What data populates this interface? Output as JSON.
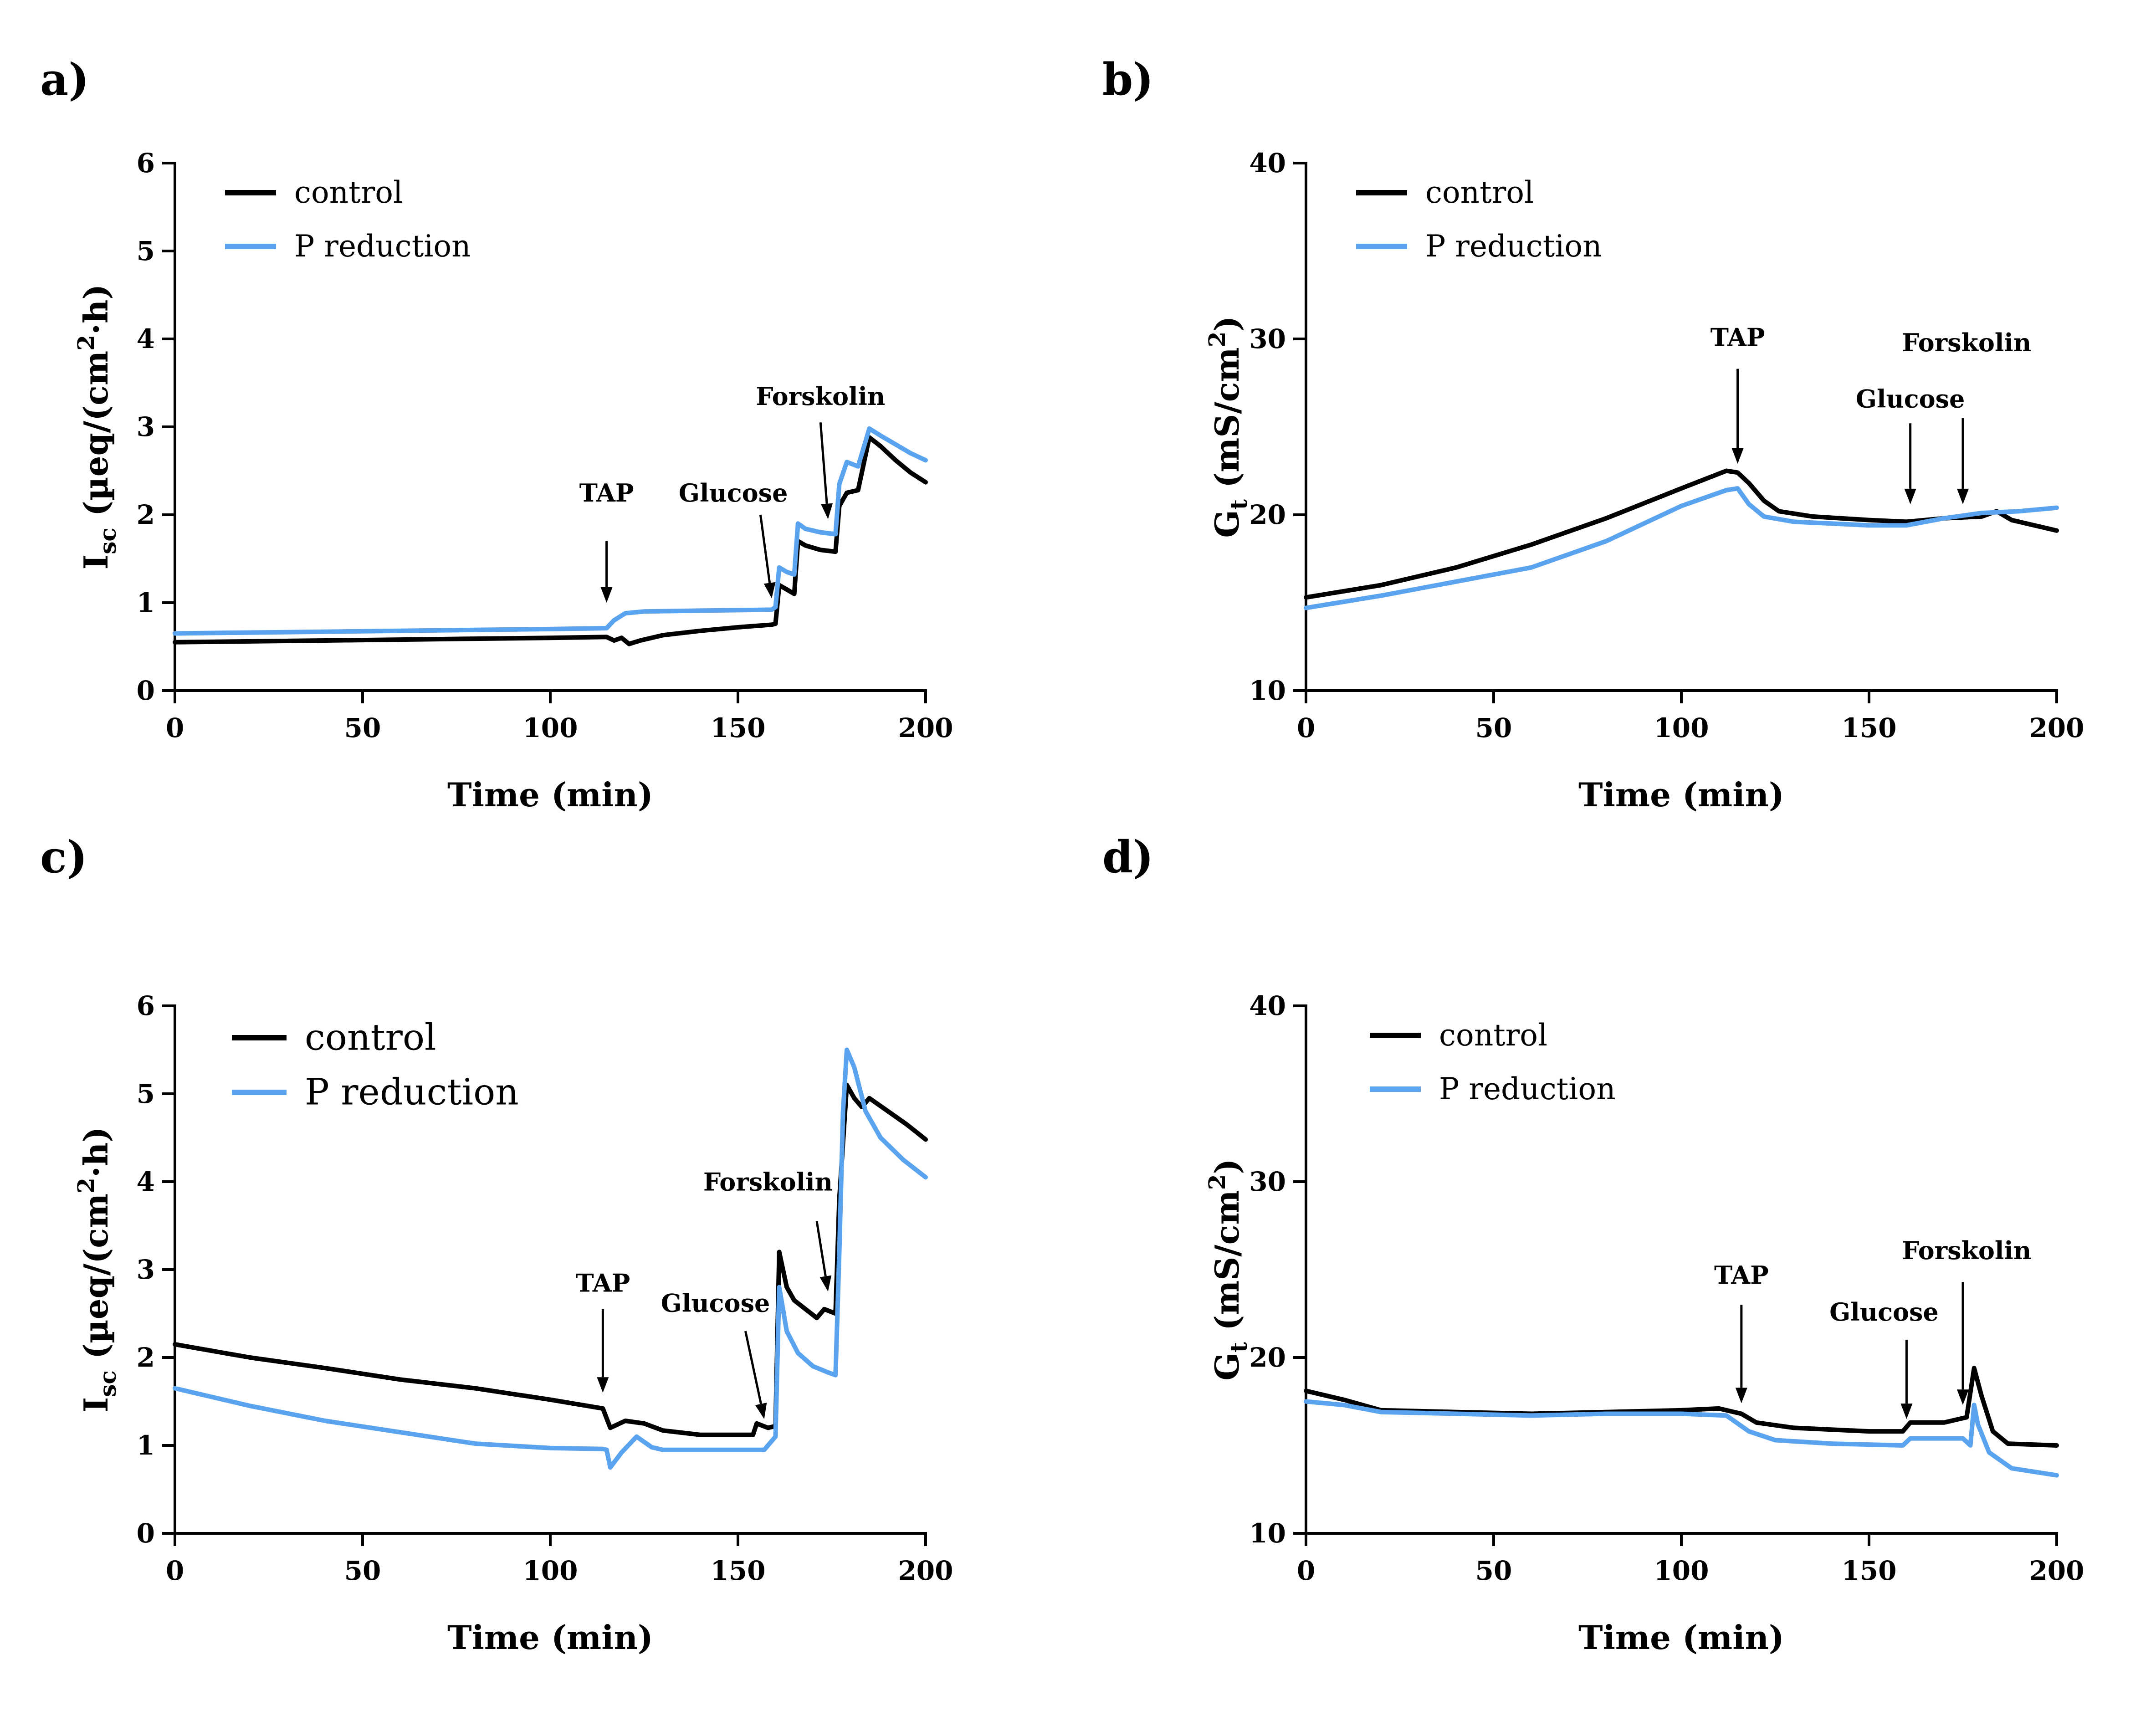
{
  "colors": {
    "control": "#000000",
    "p_reduction": "#5aa3ee"
  },
  "chart_data": [
    {
      "type": "line",
      "panel_label": "a)",
      "xlabel": "Time (min)",
      "ylabel_main": "I",
      "ylabel_sub": "sc",
      "ylabel_rest": " (µeq/(cm",
      "ylabel_sup": "2",
      "ylabel_end": "·h)",
      "xlim": [
        0,
        200
      ],
      "ylim": [
        0,
        6
      ],
      "xticks": [
        0,
        50,
        100,
        150,
        200
      ],
      "yticks": [
        0,
        1,
        2,
        3,
        4,
        5,
        6
      ],
      "legend": [
        "control",
        "P reduction"
      ],
      "series": [
        {
          "name": "control",
          "points": [
            [
              0,
              0.55
            ],
            [
              20,
              0.56
            ],
            [
              40,
              0.57
            ],
            [
              60,
              0.58
            ],
            [
              80,
              0.59
            ],
            [
              100,
              0.6
            ],
            [
              115,
              0.61
            ],
            [
              117,
              0.57
            ],
            [
              119,
              0.6
            ],
            [
              121,
              0.53
            ],
            [
              124,
              0.57
            ],
            [
              130,
              0.63
            ],
            [
              140,
              0.68
            ],
            [
              150,
              0.72
            ],
            [
              159,
              0.75
            ],
            [
              160,
              0.76
            ],
            [
              161,
              1.2
            ],
            [
              163,
              1.15
            ],
            [
              165,
              1.1
            ],
            [
              166,
              1.7
            ],
            [
              168,
              1.65
            ],
            [
              172,
              1.6
            ],
            [
              176,
              1.58
            ],
            [
              177,
              2.1
            ],
            [
              179,
              2.25
            ],
            [
              182,
              2.28
            ],
            [
              185,
              2.88
            ],
            [
              188,
              2.78
            ],
            [
              192,
              2.62
            ],
            [
              196,
              2.48
            ],
            [
              200,
              2.37
            ]
          ]
        },
        {
          "name": "P reduction",
          "points": [
            [
              0,
              0.65
            ],
            [
              20,
              0.66
            ],
            [
              40,
              0.67
            ],
            [
              60,
              0.68
            ],
            [
              80,
              0.69
            ],
            [
              100,
              0.7
            ],
            [
              115,
              0.71
            ],
            [
              117,
              0.8
            ],
            [
              120,
              0.88
            ],
            [
              125,
              0.9
            ],
            [
              140,
              0.91
            ],
            [
              159,
              0.92
            ],
            [
              160,
              0.95
            ],
            [
              161,
              1.4
            ],
            [
              163,
              1.35
            ],
            [
              165,
              1.32
            ],
            [
              166,
              1.9
            ],
            [
              168,
              1.84
            ],
            [
              172,
              1.8
            ],
            [
              176,
              1.78
            ],
            [
              177,
              2.35
            ],
            [
              179,
              2.6
            ],
            [
              182,
              2.55
            ],
            [
              185,
              2.98
            ],
            [
              188,
              2.9
            ],
            [
              192,
              2.8
            ],
            [
              196,
              2.7
            ],
            [
              200,
              2.62
            ]
          ]
        }
      ],
      "annotations": [
        {
          "label": "TAP",
          "x": 115,
          "y_text": 2.15,
          "y_start": 1.7,
          "y_end": 1.0,
          "align": "center"
        },
        {
          "label": "Glucose",
          "x": 159,
          "y_text": 2.15,
          "y_start": 2.0,
          "y_end": 1.05,
          "x_start": 156,
          "align": "right"
        },
        {
          "label": "Forskolin",
          "x": 174,
          "y_text": 3.25,
          "y_start": 3.05,
          "y_end": 1.95,
          "x_start": 172,
          "align": "center"
        }
      ]
    },
    {
      "type": "line",
      "panel_label": "b)",
      "xlabel": "Time (min)",
      "ylabel_main": "G",
      "ylabel_sub": "t",
      "ylabel_rest": " (mS/cm",
      "ylabel_sup": "2",
      "ylabel_end": ")",
      "xlim": [
        0,
        200
      ],
      "ylim": [
        10,
        40
      ],
      "xticks": [
        0,
        50,
        100,
        150,
        200
      ],
      "yticks": [
        10,
        20,
        30,
        40
      ],
      "legend": [
        "control",
        "P reduction"
      ],
      "series": [
        {
          "name": "control",
          "points": [
            [
              0,
              15.3
            ],
            [
              20,
              16.0
            ],
            [
              40,
              17.0
            ],
            [
              60,
              18.3
            ],
            [
              80,
              19.8
            ],
            [
              100,
              21.5
            ],
            [
              112,
              22.5
            ],
            [
              115,
              22.4
            ],
            [
              118,
              21.8
            ],
            [
              122,
              20.8
            ],
            [
              126,
              20.2
            ],
            [
              135,
              19.9
            ],
            [
              150,
              19.7
            ],
            [
              160,
              19.6
            ],
            [
              170,
              19.8
            ],
            [
              180,
              19.9
            ],
            [
              184,
              20.2
            ],
            [
              188,
              19.7
            ],
            [
              200,
              19.1
            ]
          ]
        },
        {
          "name": "P reduction",
          "points": [
            [
              0,
              14.7
            ],
            [
              20,
              15.4
            ],
            [
              40,
              16.2
            ],
            [
              60,
              17.0
            ],
            [
              80,
              18.5
            ],
            [
              100,
              20.5
            ],
            [
              112,
              21.4
            ],
            [
              115,
              21.5
            ],
            [
              118,
              20.6
            ],
            [
              122,
              19.9
            ],
            [
              130,
              19.6
            ],
            [
              150,
              19.4
            ],
            [
              160,
              19.4
            ],
            [
              170,
              19.8
            ],
            [
              180,
              20.1
            ],
            [
              190,
              20.2
            ],
            [
              200,
              20.4
            ]
          ]
        }
      ],
      "annotations": [
        {
          "label": "TAP",
          "x": 115,
          "y_text": 29.6,
          "y_start": 28.3,
          "y_end": 22.9,
          "align": "center"
        },
        {
          "label": "Glucose",
          "x": 161,
          "y_text": 26.1,
          "y_start": 25.2,
          "y_end": 20.6,
          "align": "center"
        },
        {
          "label": "Forskolin",
          "x": 175,
          "y_text": 29.3,
          "y_start": 25.5,
          "y_end": 20.6,
          "x_label": 176,
          "align": "center"
        }
      ]
    },
    {
      "type": "line",
      "panel_label": "c)",
      "xlabel": "Time (min)",
      "ylabel_main": "I",
      "ylabel_sub": "sc",
      "ylabel_rest": " (µeq/(cm",
      "ylabel_sup": "2",
      "ylabel_end": "·h)",
      "xlim": [
        0,
        200
      ],
      "ylim": [
        0,
        6
      ],
      "xticks": [
        0,
        50,
        100,
        150,
        200
      ],
      "yticks": [
        0,
        1,
        2,
        3,
        4,
        5,
        6
      ],
      "legend": [
        "control",
        "P reduction"
      ],
      "series": [
        {
          "name": "control",
          "points": [
            [
              0,
              2.15
            ],
            [
              20,
              2.0
            ],
            [
              40,
              1.88
            ],
            [
              60,
              1.75
            ],
            [
              80,
              1.65
            ],
            [
              100,
              1.52
            ],
            [
              114,
              1.42
            ],
            [
              116,
              1.2
            ],
            [
              120,
              1.28
            ],
            [
              125,
              1.25
            ],
            [
              130,
              1.17
            ],
            [
              140,
              1.12
            ],
            [
              150,
              1.12
            ],
            [
              154,
              1.12
            ],
            [
              155,
              1.25
            ],
            [
              158,
              1.2
            ],
            [
              160,
              1.22
            ],
            [
              161,
              3.2
            ],
            [
              163,
              2.8
            ],
            [
              165,
              2.65
            ],
            [
              168,
              2.55
            ],
            [
              171,
              2.45
            ],
            [
              173,
              2.55
            ],
            [
              176,
              2.5
            ],
            [
              177,
              3.8
            ],
            [
              179,
              5.1
            ],
            [
              181,
              4.95
            ],
            [
              183,
              4.85
            ],
            [
              185,
              4.95
            ],
            [
              190,
              4.8
            ],
            [
              195,
              4.65
            ],
            [
              200,
              4.48
            ]
          ]
        },
        {
          "name": "P reduction",
          "points": [
            [
              0,
              1.65
            ],
            [
              20,
              1.45
            ],
            [
              40,
              1.28
            ],
            [
              60,
              1.15
            ],
            [
              80,
              1.02
            ],
            [
              100,
              0.97
            ],
            [
              114,
              0.96
            ],
            [
              115,
              0.95
            ],
            [
              116,
              0.75
            ],
            [
              119,
              0.92
            ],
            [
              123,
              1.1
            ],
            [
              127,
              0.98
            ],
            [
              130,
              0.95
            ],
            [
              145,
              0.95
            ],
            [
              157,
              0.95
            ],
            [
              159,
              1.05
            ],
            [
              160,
              1.1
            ],
            [
              161,
              2.8
            ],
            [
              163,
              2.3
            ],
            [
              166,
              2.05
            ],
            [
              170,
              1.9
            ],
            [
              174,
              1.83
            ],
            [
              176,
              1.8
            ],
            [
              177,
              3.2
            ],
            [
              178,
              4.8
            ],
            [
              179,
              5.5
            ],
            [
              181,
              5.3
            ],
            [
              184,
              4.8
            ],
            [
              188,
              4.5
            ],
            [
              194,
              4.25
            ],
            [
              200,
              4.05
            ]
          ]
        }
      ],
      "annotations": [
        {
          "label": "TAP",
          "x": 114,
          "y_text": 2.75,
          "y_start": 2.55,
          "y_end": 1.6,
          "align": "center"
        },
        {
          "label": "Glucose",
          "x": 157,
          "y_text": 2.52,
          "y_start": 2.3,
          "y_end": 1.3,
          "x_start": 152,
          "x_label": 144,
          "align": "center"
        },
        {
          "label": "Forskolin",
          "x": 174,
          "y_text": 3.9,
          "y_start": 3.55,
          "y_end": 2.75,
          "x_start": 171,
          "x_label": 158,
          "align": "center"
        }
      ]
    },
    {
      "type": "line",
      "panel_label": "d)",
      "xlabel": "Time (min)",
      "ylabel_main": "G",
      "ylabel_sub": "t",
      "ylabel_rest": " (mS/cm",
      "ylabel_sup": "2",
      "ylabel_end": ")",
      "xlim": [
        0,
        200
      ],
      "ylim": [
        10,
        40
      ],
      "xticks": [
        0,
        50,
        100,
        150,
        200
      ],
      "yticks": [
        10,
        20,
        30,
        40
      ],
      "legend": [
        "control",
        "P reduction"
      ],
      "series": [
        {
          "name": "control",
          "points": [
            [
              0,
              18.1
            ],
            [
              10,
              17.6
            ],
            [
              20,
              17.0
            ],
            [
              40,
              16.9
            ],
            [
              60,
              16.8
            ],
            [
              80,
              16.9
            ],
            [
              100,
              17.0
            ],
            [
              110,
              17.1
            ],
            [
              116,
              16.8
            ],
            [
              120,
              16.3
            ],
            [
              130,
              16.0
            ],
            [
              150,
              15.8
            ],
            [
              159,
              15.8
            ],
            [
              161,
              16.3
            ],
            [
              170,
              16.3
            ],
            [
              176,
              16.6
            ],
            [
              178,
              19.4
            ],
            [
              180,
              17.8
            ],
            [
              183,
              15.8
            ],
            [
              187,
              15.1
            ],
            [
              200,
              15.0
            ]
          ]
        },
        {
          "name": "P reduction",
          "points": [
            [
              0,
              17.5
            ],
            [
              10,
              17.3
            ],
            [
              20,
              16.9
            ],
            [
              40,
              16.8
            ],
            [
              60,
              16.7
            ],
            [
              80,
              16.8
            ],
            [
              100,
              16.8
            ],
            [
              112,
              16.7
            ],
            [
              118,
              15.8
            ],
            [
              125,
              15.3
            ],
            [
              140,
              15.1
            ],
            [
              159,
              15.0
            ],
            [
              161,
              15.4
            ],
            [
              175,
              15.4
            ],
            [
              177,
              15.0
            ],
            [
              178,
              17.3
            ],
            [
              179,
              16.2
            ],
            [
              182,
              14.6
            ],
            [
              188,
              13.7
            ],
            [
              200,
              13.3
            ]
          ]
        }
      ],
      "annotations": [
        {
          "label": "TAP",
          "x": 116,
          "y_text": 24.2,
          "y_start": 23.0,
          "y_end": 17.4,
          "align": "center"
        },
        {
          "label": "Glucose",
          "x": 160,
          "y_text": 22.1,
          "y_start": 21.0,
          "y_end": 16.5,
          "x_label": 154,
          "align": "center"
        },
        {
          "label": "Forskolin",
          "x": 175,
          "y_text": 25.6,
          "y_start": 24.3,
          "y_end": 17.3,
          "x_label": 176,
          "align": "center"
        }
      ]
    }
  ]
}
